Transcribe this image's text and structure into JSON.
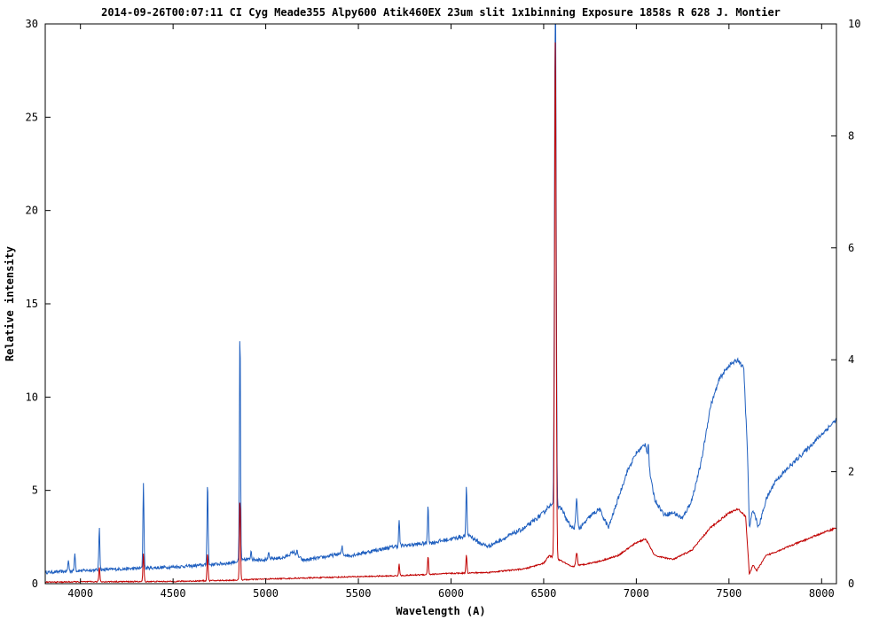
{
  "chart_data": {
    "type": "line",
    "title": "2014-09-26T00:07:11 CI Cyg Meade355 Alpy600 Atik460EX 23um slit 1x1binning Exposure 1858s R 628 J. Montier",
    "xlabel": "Wavelength (A)",
    "ylabel": "Relative intensity",
    "xlim": [
      3810,
      8080
    ],
    "ylim": [
      0,
      30
    ],
    "y2lim": [
      0,
      10
    ],
    "xticks": [
      4000,
      4500,
      5000,
      5500,
      6000,
      6500,
      7000,
      7500,
      8000
    ],
    "yticks": [
      0,
      5,
      10,
      15,
      20,
      25,
      30
    ],
    "y2ticks": [
      0,
      2,
      4,
      6,
      8,
      10
    ],
    "grid": false,
    "series": [
      {
        "color": "#1f5fbf",
        "axis": "left",
        "continuum": [
          [
            3810,
            0.6
          ],
          [
            3900,
            0.65
          ],
          [
            4000,
            0.7
          ],
          [
            4200,
            0.78
          ],
          [
            4400,
            0.85
          ],
          [
            4600,
            0.95
          ],
          [
            4800,
            1.1
          ],
          [
            4900,
            1.3
          ],
          [
            5000,
            1.3
          ],
          [
            5100,
            1.4
          ],
          [
            5150,
            1.7
          ],
          [
            5200,
            1.25
          ],
          [
            5300,
            1.4
          ],
          [
            5400,
            1.6
          ],
          [
            5450,
            1.5
          ],
          [
            5600,
            1.8
          ],
          [
            5700,
            2.0
          ],
          [
            5800,
            2.1
          ],
          [
            5900,
            2.2
          ],
          [
            6000,
            2.4
          ],
          [
            6100,
            2.6
          ],
          [
            6150,
            2.2
          ],
          [
            6200,
            2.0
          ],
          [
            6300,
            2.5
          ],
          [
            6400,
            3.0
          ],
          [
            6500,
            3.8
          ],
          [
            6530,
            4.2
          ],
          [
            6600,
            4.0
          ],
          [
            6620,
            3.5
          ],
          [
            6650,
            3.0
          ],
          [
            6700,
            3.0
          ],
          [
            6750,
            3.6
          ],
          [
            6800,
            4.0
          ],
          [
            6850,
            3.0
          ],
          [
            6900,
            4.5
          ],
          [
            6950,
            6.0
          ],
          [
            7000,
            7.0
          ],
          [
            7050,
            7.5
          ],
          [
            7080,
            5.5
          ],
          [
            7100,
            4.5
          ],
          [
            7150,
            3.7
          ],
          [
            7200,
            3.8
          ],
          [
            7250,
            3.5
          ],
          [
            7300,
            4.5
          ],
          [
            7350,
            6.5
          ],
          [
            7400,
            9.5
          ],
          [
            7450,
            11.0
          ],
          [
            7500,
            11.7
          ],
          [
            7550,
            12.0
          ],
          [
            7580,
            11.5
          ],
          [
            7600,
            7.0
          ],
          [
            7610,
            3.0
          ],
          [
            7630,
            4.0
          ],
          [
            7660,
            3.0
          ],
          [
            7700,
            4.5
          ],
          [
            7750,
            5.5
          ],
          [
            7800,
            6.0
          ],
          [
            7900,
            7.0
          ],
          [
            8000,
            8.0
          ],
          [
            8080,
            8.8
          ]
        ],
        "lines": [
          [
            3935,
            0.6
          ],
          [
            3970,
            1.0
          ],
          [
            4102,
            2.3
          ],
          [
            4340,
            4.6
          ],
          [
            4686,
            4.5
          ],
          [
            4861,
            12.5
          ],
          [
            4921,
            0.5
          ],
          [
            5016,
            0.3
          ],
          [
            5169,
            0.2
          ],
          [
            5412,
            0.4
          ],
          [
            5720,
            1.4
          ],
          [
            5876,
            2.1
          ],
          [
            6083,
            2.6
          ],
          [
            6563,
            30.0
          ],
          [
            6678,
            1.5
          ],
          [
            7065,
            1.0
          ]
        ]
      },
      {
        "color": "#c00000",
        "axis": "left",
        "continuum": [
          [
            3810,
            0.08
          ],
          [
            4000,
            0.1
          ],
          [
            4500,
            0.12
          ],
          [
            4800,
            0.18
          ],
          [
            5000,
            0.25
          ],
          [
            5200,
            0.3
          ],
          [
            5500,
            0.38
          ],
          [
            5700,
            0.42
          ],
          [
            6000,
            0.55
          ],
          [
            6200,
            0.6
          ],
          [
            6400,
            0.8
          ],
          [
            6500,
            1.1
          ],
          [
            6530,
            1.5
          ],
          [
            6600,
            1.2
          ],
          [
            6650,
            0.9
          ],
          [
            6800,
            1.2
          ],
          [
            6900,
            1.5
          ],
          [
            7000,
            2.2
          ],
          [
            7050,
            2.4
          ],
          [
            7100,
            1.5
          ],
          [
            7200,
            1.3
          ],
          [
            7300,
            1.8
          ],
          [
            7400,
            3.0
          ],
          [
            7500,
            3.8
          ],
          [
            7550,
            4.0
          ],
          [
            7590,
            3.6
          ],
          [
            7610,
            0.5
          ],
          [
            7630,
            1.0
          ],
          [
            7650,
            0.7
          ],
          [
            7700,
            1.5
          ],
          [
            7800,
            1.9
          ],
          [
            7900,
            2.3
          ],
          [
            8000,
            2.7
          ],
          [
            8080,
            3.0
          ]
        ],
        "lines": [
          [
            4102,
            0.8
          ],
          [
            4340,
            1.5
          ],
          [
            4686,
            1.5
          ],
          [
            4861,
            4.4
          ],
          [
            5720,
            0.6
          ],
          [
            5876,
            1.0
          ],
          [
            6083,
            1.0
          ],
          [
            6563,
            27.8
          ],
          [
            6678,
            0.7
          ]
        ]
      }
    ]
  }
}
